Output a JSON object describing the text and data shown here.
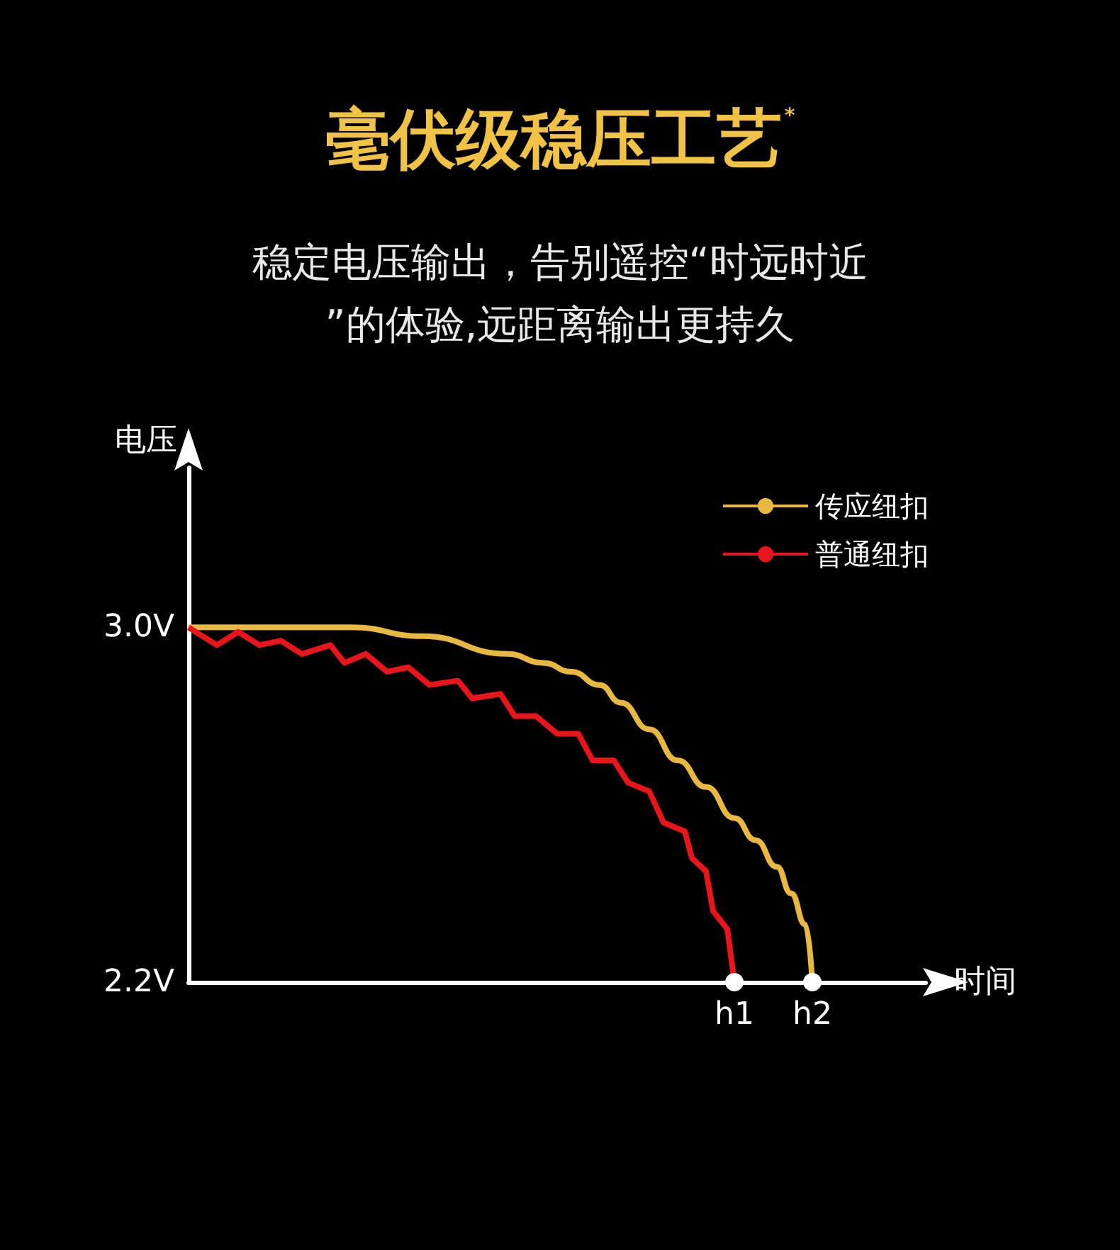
{
  "chart_data": {
    "type": "line",
    "title": "毫伏级稳压工艺$^{*}$",
    "subtitle": "稳定电压输出，告别遥控“时远时近”的体验,远距离输出更持久",
    "xlabel": "时间",
    "ylabel": "电压",
    "categories": [
      null,
      null,
      null,
      null,
      null,
      null,
      null,
      null,
      null,
      null,
      null,
      null,
      null,
      null,
      null,
      null,
      null,
      null,
      null,
      null,
      null,
      null,
      null,
      null,
      null,
      null,
      null,
      null,
      null,
      null,
      null,
      null,
      null,
      null,
      null,
      null,
      null,
      null,
      null,
      null,
      null,
      null,
      null,
      null,
      null,
      null,
      null,
      null,
      null,
      null,
      null,
      null,
      null,
      null,
      null,
      null,
      null,
      null,
      null,
      null,
      null,
      null,
      null,
      null,
      null,
      null,
      null,
      null,
      null,
      null,
      null,
      null,
      null,
      null,
      null,
      null,
      null,
      "h1",
      null,
      null,
      null,
      null,
      null,
      null,
      null,
      null,
      null,
      null,
      "h2",
      null,
      null,
      null,
      null,
      null,
      null,
      null,
      null,
      null,
      null,
      null,
      null,
      null,
      null,
      null,
      null
    ],
    "ylim": [
      2.2,
      3.36
    ],
    "yticks": [
      {
        "value": 2.2,
        "label": "2.2V"
      },
      {
        "value": 3.0,
        "label": "3.0V"
      }
    ],
    "legend": "top right",
    "grid": false,
    "series": [
      {
        "name": "传应纽扣",
        "color": "#e8b840",
        "values": [
          3.0,
          null,
          null,
          null,
          null,
          null,
          null,
          null,
          null,
          null,
          null,
          null,
          null,
          3.0,
          null,
          null,
          null,
          null,
          null,
          null,
          null,
          null,
          null,
          3.0,
          null,
          null,
          null,
          null,
          null,
          null,
          null,
          null,
          null,
          2.98,
          null,
          null,
          null,
          null,
          null,
          null,
          null,
          null,
          null,
          null,
          null,
          2.94,
          null,
          null,
          null,
          null,
          2.92,
          null,
          null,
          null,
          2.9,
          null,
          null,
          null,
          2.87,
          null,
          null,
          2.83,
          null,
          null,
          null,
          2.77,
          null,
          null,
          null,
          2.7,
          null,
          null,
          null,
          2.64,
          null,
          null,
          null,
          2.57,
          null,
          null,
          2.52,
          null,
          null,
          2.46,
          null,
          2.4,
          null,
          2.33,
          2.2,
          null,
          null,
          null,
          null,
          null,
          null,
          null,
          null,
          null,
          null,
          null,
          null,
          null,
          null,
          null,
          null
        ]
      },
      {
        "name": "普通纽扣",
        "color": "#e8161b",
        "values": [
          3.0,
          null,
          null,
          null,
          2.96,
          null,
          null,
          2.99,
          null,
          null,
          2.96,
          null,
          null,
          2.97,
          null,
          null,
          2.94,
          null,
          null,
          null,
          2.96,
          null,
          2.92,
          null,
          null,
          2.94,
          null,
          null,
          2.9,
          null,
          null,
          2.91,
          null,
          null,
          2.87,
          null,
          null,
          null,
          2.88,
          null,
          2.84,
          null,
          null,
          null,
          2.85,
          null,
          2.8,
          null,
          null,
          2.8,
          null,
          null,
          2.76,
          null,
          null,
          2.76,
          null,
          2.7,
          null,
          null,
          2.7,
          null,
          2.65,
          null,
          null,
          2.63,
          null,
          2.56,
          null,
          null,
          2.54,
          2.48,
          null,
          2.45,
          2.36,
          null,
          2.32,
          2.2,
          null,
          null,
          null,
          null,
          null,
          null,
          null,
          null,
          null,
          null,
          null,
          null,
          null,
          null,
          null,
          null,
          null,
          null,
          null,
          null,
          null,
          null,
          null,
          null,
          null,
          null,
          null
        ]
      }
    ]
  }
}
